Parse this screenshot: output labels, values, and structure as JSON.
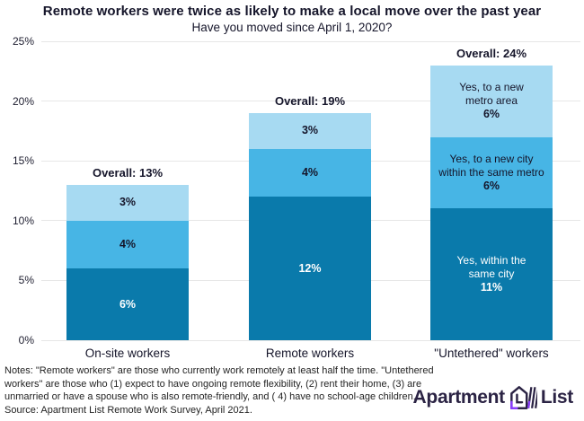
{
  "header": {
    "title": "Remote workers were twice as likely to make a local move over the past year",
    "subtitle": "Have you moved since April 1, 2020?"
  },
  "colors": {
    "dark_blue": "#0a7aab",
    "medium_blue": "#47b5e5",
    "light_blue": "#a7daf2",
    "gridline": "#e7e7e7",
    "text_dark": "#15152a",
    "logo_navy": "#2b2344",
    "logo_purple": "#8b3dff"
  },
  "chart_data": {
    "type": "bar",
    "stacked": true,
    "title": "Remote workers were twice as likely to make a local move over the past year",
    "subtitle": "Have you moved since April 1, 2020?",
    "ylim": [
      0,
      25
    ],
    "ytick_values": [
      0,
      5,
      10,
      15,
      20,
      25
    ],
    "ytick_labels": [
      "0%",
      "5%",
      "10%",
      "15%",
      "20%",
      "25%"
    ],
    "grid": "horizontal",
    "legend": "none (segments labeled in rightmost bar)",
    "categories": [
      "On-site workers",
      "Remote workers",
      "\"Untethered\" workers"
    ],
    "series": [
      {
        "name": "Yes, within the same city",
        "color": "#0a7aab",
        "values": [
          6,
          12,
          11
        ]
      },
      {
        "name": "Yes, to a new city within the same metro",
        "color": "#47b5e5",
        "values": [
          4,
          4,
          6
        ]
      },
      {
        "name": "Yes, to a new metro area",
        "color": "#a7daf2",
        "values": [
          3,
          3,
          6
        ]
      }
    ],
    "bars": [
      {
        "category": "On-site workers",
        "overall": 13,
        "overall_label": "Overall: 13%",
        "segments": [
          {
            "name": "Yes, within the same city",
            "value": 6,
            "value_label": "6%",
            "color": "#0a7aab",
            "text_color": "#ffffff",
            "desc_lines": []
          },
          {
            "name": "Yes, to a new city within the same metro",
            "value": 4,
            "value_label": "4%",
            "color": "#47b5e5",
            "text_color": "#15152a",
            "desc_lines": []
          },
          {
            "name": "Yes, to a new metro area",
            "value": 3,
            "value_label": "3%",
            "color": "#a7daf2",
            "text_color": "#15152a",
            "desc_lines": []
          }
        ]
      },
      {
        "category": "Remote workers",
        "overall": 19,
        "overall_label": "Overall: 19%",
        "segments": [
          {
            "name": "Yes, within the same city",
            "value": 12,
            "value_label": "12%",
            "color": "#0a7aab",
            "text_color": "#ffffff",
            "desc_lines": []
          },
          {
            "name": "Yes, to a new city within the same metro",
            "value": 4,
            "value_label": "4%",
            "color": "#47b5e5",
            "text_color": "#15152a",
            "desc_lines": []
          },
          {
            "name": "Yes, to a new metro area",
            "value": 3,
            "value_label": "3%",
            "color": "#a7daf2",
            "text_color": "#15152a",
            "desc_lines": []
          }
        ]
      },
      {
        "category": "\"Untethered\" workers",
        "overall": 24,
        "overall_label": "Overall: 24%",
        "segments": [
          {
            "name": "Yes, within the same city",
            "value": 11,
            "value_label": "11%",
            "color": "#0a7aab",
            "text_color": "#ffffff",
            "desc_lines": [
              "Yes, within the",
              "same city"
            ]
          },
          {
            "name": "Yes, to a new city within the same metro",
            "value": 6,
            "value_label": "6%",
            "color": "#47b5e5",
            "text_color": "#15152a",
            "desc_lines": [
              "Yes, to a new city",
              "within the same metro"
            ]
          },
          {
            "name": "Yes, to a new metro area",
            "value": 6,
            "value_label": "6%",
            "color": "#a7daf2",
            "text_color": "#15152a",
            "desc_lines": [
              "Yes, to a new",
              "metro area"
            ]
          }
        ]
      }
    ]
  },
  "notes": {
    "lines": [
      "Notes: \"Remote workers\" are those who currently work remotely at least half the time. \"Untethered",
      "workers\" are those who (1) expect to have ongoing remote flexibility, (2) rent their home, (3) are",
      "unmarried or have a spouse who is also remote-friendly, and ( 4) have no school-age children."
    ],
    "source": "Source: Apartment List Remote Work Survey, April 2021."
  },
  "logo": {
    "part1": "Apartment",
    "part2": "List"
  }
}
